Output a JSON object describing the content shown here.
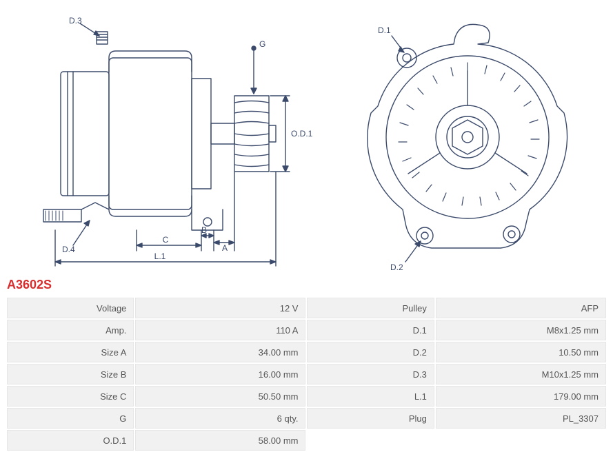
{
  "part_number": "A3602S",
  "diagram": {
    "stroke": "#3b4a6b",
    "stroke_width": 1.4,
    "label_font_size": 12,
    "left": {
      "callouts": {
        "D3": "D.3",
        "D4": "D.4",
        "G": "G",
        "OD1": "O.D.1",
        "A": "A",
        "B": "B",
        "C": "C",
        "L1": "L.1"
      }
    },
    "right": {
      "callouts": {
        "D1": "D.1",
        "D2": "D.2"
      }
    }
  },
  "spec": {
    "rows": [
      {
        "l1": "Voltage",
        "v1": "12 V",
        "l2": "Pulley",
        "v2": "AFP"
      },
      {
        "l1": "Amp.",
        "v1": "110 A",
        "l2": "D.1",
        "v2": "M8x1.25 mm"
      },
      {
        "l1": "Size A",
        "v1": "34.00 mm",
        "l2": "D.2",
        "v2": "10.50 mm"
      },
      {
        "l1": "Size B",
        "v1": "16.00 mm",
        "l2": "D.3",
        "v2": "M10x1.25 mm"
      },
      {
        "l1": "Size C",
        "v1": "50.50 mm",
        "l2": "L.1",
        "v2": "179.00 mm"
      },
      {
        "l1": "G",
        "v1": "6 qty.",
        "l2": "Plug",
        "v2": "PL_3307"
      },
      {
        "l1": "O.D.1",
        "v1": "58.00 mm",
        "l2": "",
        "v2": ""
      }
    ],
    "label_bg": "#f1f1f1",
    "border": "#e6e6e6",
    "font_size": 13
  }
}
